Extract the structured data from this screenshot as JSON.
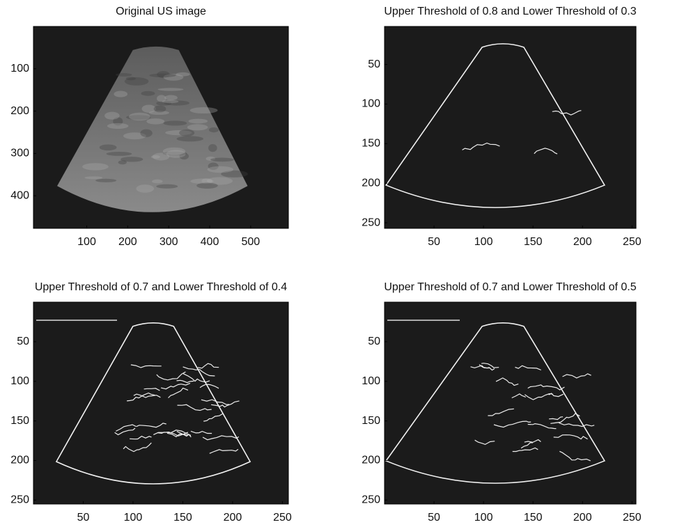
{
  "chart_data": [
    {
      "type": "image",
      "title": "Original US image",
      "xlim": [
        -30,
        592
      ],
      "ylim": [
        0,
        477
      ],
      "y_reversed": true,
      "xticks": [
        100,
        200,
        300,
        400,
        500
      ],
      "yticks": [
        100,
        200,
        300,
        400
      ]
    },
    {
      "type": "image",
      "title": "Upper Threshold of 0.8 and Lower Threshold of 0.3",
      "xlim": [
        0,
        254
      ],
      "ylim": [
        2,
        257
      ],
      "y_reversed": true,
      "xticks": [
        50,
        100,
        150,
        200,
        250
      ],
      "yticks": [
        50,
        100,
        150,
        200,
        250
      ]
    },
    {
      "type": "image",
      "title": "Upper Threshold of 0.7 and Lower Threshold of 0.4",
      "xlim": [
        0,
        256
      ],
      "ylim": [
        0,
        255
      ],
      "y_reversed": true,
      "xticks": [
        50,
        100,
        150,
        200,
        250
      ],
      "yticks": [
        50,
        100,
        150,
        200,
        250
      ]
    },
    {
      "type": "image",
      "title": "Upper Threshold of 0.7 and Lower Threshold of 0.5",
      "xlim": [
        0,
        254
      ],
      "ylim": [
        0,
        255
      ],
      "y_reversed": true,
      "xticks": [
        50,
        100,
        150,
        200,
        250
      ],
      "yticks": [
        50,
        100,
        150,
        200,
        250
      ]
    }
  ]
}
